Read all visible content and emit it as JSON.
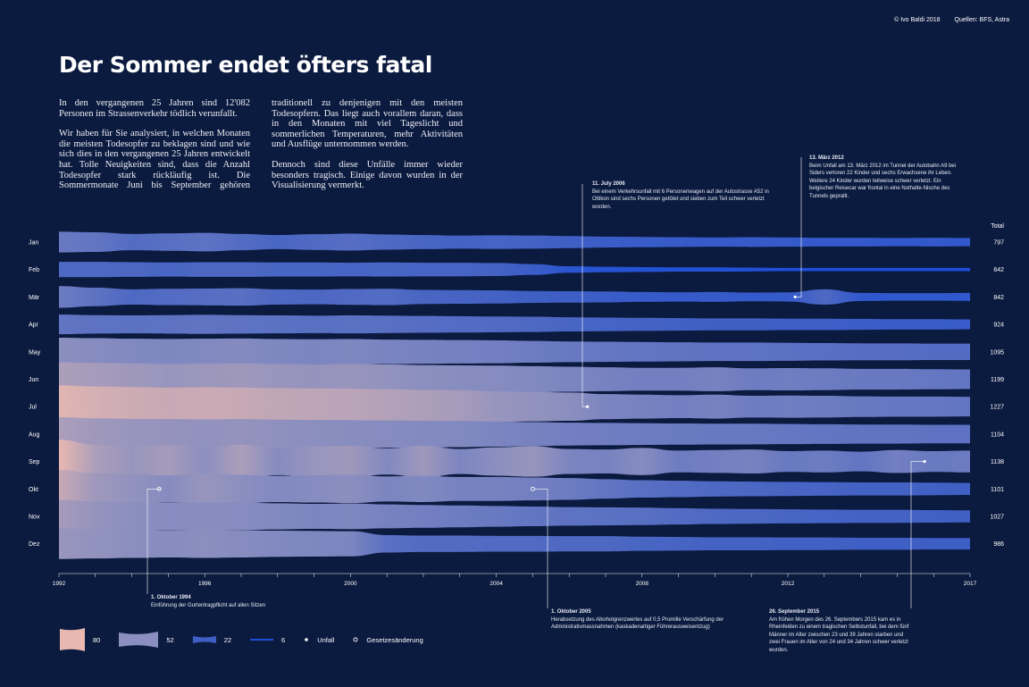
{
  "credits": {
    "author": "© Ivo Baldi  2018",
    "source": "Quellen: BFS, Astra"
  },
  "title": "Der Sommer endet öfters fatal",
  "intro": [
    "In den vergangenen 25 Jahren sind 12'082 Personen im Strassenverkehr tödlich verunfallt.",
    "Wir haben für Sie analysiert, in welchen Monaten die meisten Todesopfer zu beklagen sind und wie sich dies in den vergangenen 25 Jahren entwickelt hat. Tolle Neuigkeiten sind, dass die Anzahl Todesopfer stark rückläufig ist. Die Sommermonate Juni bis September gehören traditionell zu denjenigen mit den meisten Todesopfern. Das liegt auch vorallem daran, dass in den Monaten mit viel Tageslicht und sommerlichen Temperaturen, mehr Aktivitäten und Ausflüge unternommen werden.",
    "Dennoch sind diese Unfälle immer wieder besonders tragisch. Einige davon wurden in der Visualisierung vermerkt."
  ],
  "annotations": [
    {
      "title": "1. Oktober 1994",
      "text": "Einführung der Gurtentragpflicht auf allen Sitzen"
    },
    {
      "title": "1. Oktober 2005",
      "text": "Herabsetzung des Alkoholgrenzwertes auf 0,5 Promille Verschärfung der Administrativmassnahmen (kaskadenartiger Führerausweisentzug)"
    },
    {
      "title": "11. July 2006",
      "text": "Bei einem Verkehrsunfall mit 6 Personenwagen auf der Autostrasse A52 in Ottikon sind sechs Personen getötet und sieben zum Teil schwer verletzt worden."
    },
    {
      "title": "13. März 2012",
      "text": "Beim Unfall am 13. März 2012 im Tunnel der Autobahn A9 bei Siders verloren 22 Kinder und sechs Erwachsene ihr Leben. Weitere 24 Kinder wurden teilweise schwer verletzt. Ein belgischer Reisecar war frontal in eine Nothalte-Nische des Tunnels geprallt."
    },
    {
      "title": "26. September 2015",
      "text": "Am frühen Morgen des 26. Septembers 2015 kam es in Rheinfelden zu einem tragischen Selbstunfall, bei dem fünf Männer im Alter zwischen 23 und 39 Jahren starben und zwei Frauen im Alter von 24 und 34 Jahren schwer verletzt wurden."
    }
  ],
  "legend": {
    "items": [
      {
        "label": "80",
        "color": "#e8b8b0"
      },
      {
        "label": "52",
        "color": "#8b8fbf"
      },
      {
        "label": "22",
        "color": "#3f5fc4"
      },
      {
        "label": "6",
        "color": "#1f4fd8"
      }
    ],
    "unfall": "Unfall",
    "gesetz": "Gesetzesänderung"
  },
  "chart_data": {
    "type": "area",
    "total_label": "Total",
    "x_ticks": [
      "1992",
      "1996",
      "2000",
      "2004",
      "2008",
      "2012",
      "2017"
    ],
    "x_tick_years": [
      1992,
      1996,
      2000,
      2004,
      2008,
      2012,
      2017
    ],
    "xlim": [
      1992,
      2017
    ],
    "series": [
      {
        "name": "Jan",
        "total": "797",
        "values": [
          38,
          36,
          30,
          32,
          34,
          30,
          26,
          29,
          31,
          28,
          26,
          24,
          25,
          24,
          22,
          20,
          19,
          18,
          17,
          18,
          17,
          16,
          16,
          15,
          16,
          15
        ]
      },
      {
        "name": "Feb",
        "total": "642",
        "values": [
          28,
          28,
          27,
          26,
          27,
          27,
          26,
          26,
          25,
          26,
          25,
          25,
          24,
          20,
          12,
          10,
          9,
          8,
          8,
          7,
          6,
          6,
          6,
          6,
          6,
          6
        ]
      },
      {
        "name": "Mär",
        "total": "842",
        "values": [
          40,
          34,
          28,
          30,
          31,
          32,
          28,
          27,
          29,
          30,
          26,
          25,
          24,
          22,
          21,
          20,
          18,
          17,
          18,
          16,
          17,
          28,
          15,
          14,
          14,
          15
        ]
      },
      {
        "name": "Apr",
        "total": "924",
        "values": [
          36,
          34,
          33,
          34,
          35,
          34,
          33,
          32,
          33,
          32,
          31,
          30,
          29,
          28,
          26,
          25,
          24,
          23,
          22,
          22,
          21,
          21,
          20,
          19,
          19,
          18
        ]
      },
      {
        "name": "May",
        "total": "1095",
        "values": [
          52,
          50,
          48,
          47,
          48,
          49,
          47,
          46,
          47,
          45,
          44,
          43,
          42,
          40,
          38,
          37,
          36,
          35,
          34,
          34,
          33,
          32,
          31,
          31,
          30,
          30
        ]
      },
      {
        "name": "Jun",
        "total": "1199",
        "values": [
          62,
          60,
          58,
          56,
          57,
          58,
          56,
          55,
          56,
          54,
          52,
          51,
          50,
          48,
          46,
          44,
          42,
          42,
          44,
          40,
          41,
          40,
          38,
          38,
          37,
          36
        ]
      },
      {
        "name": "Jul",
        "total": "1227",
        "values": [
          78,
          74,
          72,
          70,
          71,
          70,
          68,
          67,
          66,
          64,
          62,
          60,
          56,
          54,
          52,
          46,
          44,
          42,
          44,
          40,
          41,
          40,
          38,
          37,
          37,
          36
        ]
      },
      {
        "name": "Aug",
        "total": "1104",
        "values": [
          62,
          58,
          56,
          55,
          54,
          55,
          53,
          52,
          51,
          50,
          49,
          48,
          46,
          44,
          42,
          41,
          40,
          39,
          38,
          38,
          37,
          36,
          35,
          35,
          34,
          34
        ]
      },
      {
        "name": "Sep",
        "total": "1138",
        "values": [
          80,
          62,
          56,
          60,
          52,
          62,
          50,
          56,
          58,
          48,
          58,
          46,
          52,
          56,
          46,
          44,
          50,
          40,
          42,
          44,
          38,
          40,
          36,
          42,
          38,
          40
        ]
      },
      {
        "name": "Okt",
        "total": "1101",
        "values": [
          70,
          58,
          54,
          50,
          56,
          52,
          48,
          50,
          52,
          46,
          48,
          44,
          44,
          42,
          40,
          36,
          32,
          30,
          28,
          27,
          26,
          25,
          24,
          24,
          23,
          22
        ]
      },
      {
        "name": "Nov",
        "total": "1027",
        "values": [
          60,
          55,
          52,
          50,
          51,
          50,
          48,
          46,
          47,
          44,
          42,
          40,
          38,
          36,
          34,
          33,
          32,
          30,
          28,
          27,
          26,
          25,
          24,
          24,
          23,
          22
        ]
      },
      {
        "name": "Dez",
        "total": "986",
        "values": [
          56,
          54,
          52,
          50,
          52,
          50,
          48,
          47,
          46,
          32,
          30,
          30,
          29,
          29,
          28,
          28,
          26,
          25,
          24,
          24,
          23,
          23,
          22,
          22,
          21,
          21
        ]
      }
    ]
  }
}
